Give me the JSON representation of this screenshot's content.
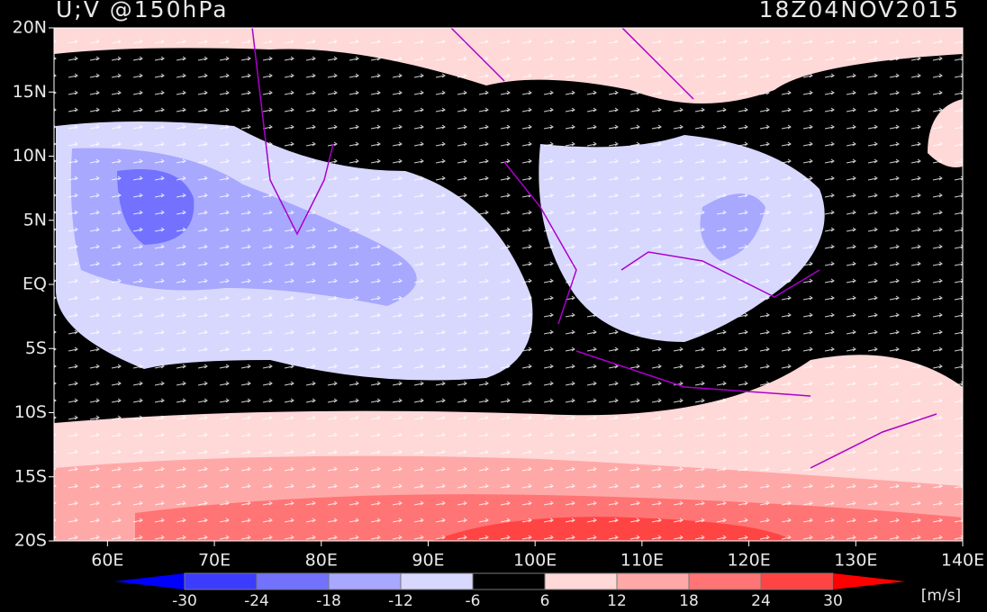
{
  "header": {
    "title": "U;V @150hPa",
    "time": "18Z04NOV2015"
  },
  "map": {
    "xlim": [
      55,
      140
    ],
    "ylim": [
      -20,
      20
    ],
    "xticks": [
      {
        "value": 60,
        "label": "60E"
      },
      {
        "value": 70,
        "label": "70E"
      },
      {
        "value": 80,
        "label": "80E"
      },
      {
        "value": 90,
        "label": "90E"
      },
      {
        "value": 100,
        "label": "100E"
      },
      {
        "value": 110,
        "label": "110E"
      },
      {
        "value": 120,
        "label": "120E"
      },
      {
        "value": 130,
        "label": "130E"
      },
      {
        "value": 140,
        "label": "140E"
      }
    ],
    "yticks": [
      {
        "value": 20,
        "label": "20N"
      },
      {
        "value": 15,
        "label": "15N"
      },
      {
        "value": 10,
        "label": "10N"
      },
      {
        "value": 5,
        "label": "5N"
      },
      {
        "value": 0,
        "label": "EQ"
      },
      {
        "value": -5,
        "label": "5S"
      },
      {
        "value": -10,
        "label": "10S"
      },
      {
        "value": -15,
        "label": "15S"
      },
      {
        "value": -20,
        "label": "20S"
      }
    ]
  },
  "colorbar": {
    "ticks": [
      -30,
      -24,
      -18,
      -12,
      -6,
      6,
      12,
      18,
      24,
      30
    ],
    "colors": [
      "#0000ff",
      "#3c3cff",
      "#7272ff",
      "#a8a8ff",
      "#d8d8ff",
      "#000000",
      "#ffd8d8",
      "#ffa8a8",
      "#ff7474",
      "#ff4444",
      "#ff0000"
    ],
    "units": "[m/s]"
  }
}
